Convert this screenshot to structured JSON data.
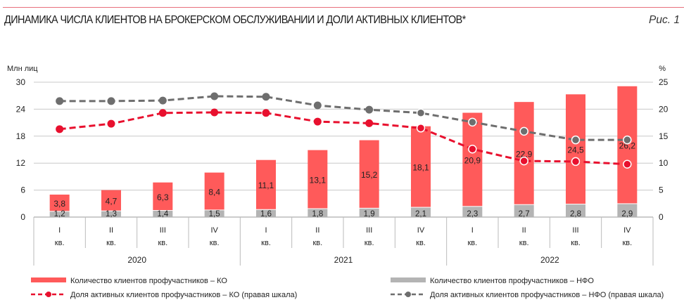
{
  "header": {
    "title": "ДИНАМИКА ЧИСЛА КЛИЕНТОВ НА БРОКЕРСКОМ ОБСЛУЖИВАНИИ И ДОЛИ АКТИВНЫХ КЛИЕНТОВ*",
    "figure": "Рис. 1"
  },
  "chart_data": {
    "type": "bar+line",
    "ylabel_left": "Млн лиц",
    "ylabel_right": "%",
    "ylim_left": [
      0,
      30
    ],
    "yticks_left": [
      "0",
      "6",
      "12",
      "18",
      "24",
      "30"
    ],
    "ylim_right": [
      0,
      25
    ],
    "yticks_right": [
      "0",
      "5",
      "10",
      "15",
      "20",
      "25"
    ],
    "grid": true,
    "quarters": [
      "I",
      "II",
      "III",
      "IV",
      "I",
      "II",
      "III",
      "IV",
      "I",
      "II",
      "III",
      "IV"
    ],
    "quarter_suffix": "кв.",
    "years": [
      "2020",
      "2021",
      "2022"
    ],
    "series": [
      {
        "name": "Количество клиентов профучастников – КО",
        "type": "bar",
        "stack": "bottom-top",
        "axis": "left",
        "color": "#ff5a5a",
        "values": [
          3.8,
          4.7,
          6.3,
          8.4,
          11.1,
          13.1,
          15.2,
          18.1,
          20.9,
          22.9,
          24.5,
          26.2
        ],
        "labels": [
          "3,8",
          "4,7",
          "6,3",
          "8,4",
          "11,1",
          "13,1",
          "15,2",
          "18,1",
          "20,9",
          "22,9",
          "24,5",
          "26,2"
        ]
      },
      {
        "name": "Количество клиентов профучастников – НФО",
        "type": "bar",
        "axis": "left",
        "color": "#b4b4b4",
        "values": [
          1.2,
          1.3,
          1.4,
          1.5,
          1.6,
          1.8,
          1.9,
          2.1,
          2.3,
          2.7,
          2.8,
          2.9
        ],
        "labels": [
          "1,2",
          "1,3",
          "1,4",
          "1,5",
          "1,6",
          "1,8",
          "1,9",
          "2,1",
          "2,3",
          "2,7",
          "2,8",
          "2,9"
        ]
      },
      {
        "name": "Доля активных клиентов профучастников – КО (правая шкала)",
        "type": "line",
        "axis": "right",
        "color": "#e8102e",
        "values": [
          16.3,
          17.3,
          19.3,
          19.4,
          19.3,
          17.7,
          17.4,
          16.5,
          12.6,
          10.4,
          10.3,
          9.8
        ]
      },
      {
        "name": "Доля активных клиентов профучастников – НФО (правая шкала)",
        "type": "line",
        "axis": "right",
        "color": "#6e6e6e",
        "values": [
          21.5,
          21.5,
          21.6,
          22.4,
          22.3,
          20.7,
          19.9,
          19.3,
          17.6,
          15.9,
          14.3,
          14.3
        ]
      }
    ],
    "legend": "bottom"
  }
}
